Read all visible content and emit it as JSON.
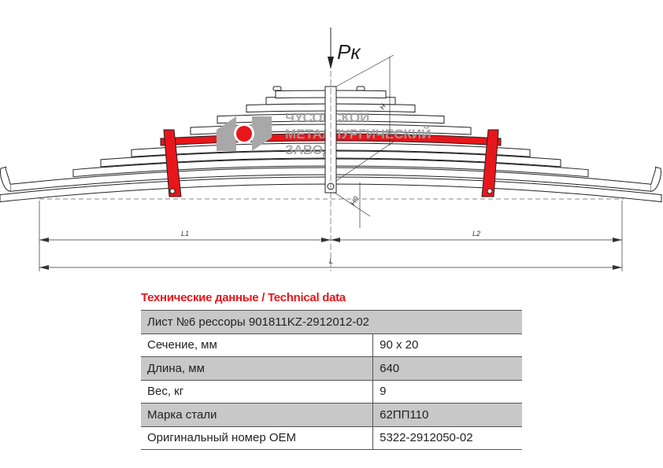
{
  "drawing": {
    "force_label": "Pк",
    "dim_labels": {
      "l1": "L1",
      "l2": "L2",
      "l": "L",
      "h": "H",
      "h0": "H0"
    },
    "highlight_color": "#e8161b",
    "watermark": {
      "line1": "ЧУСОВСКОЙ",
      "line2": "МЕТАЛЛУРГИЧЕСКИЙ",
      "line3": "ЗАВОД",
      "color": "#a0a0a0"
    }
  },
  "specs": {
    "title": "Технические данные / Technical data",
    "header": "Лист №6 рессоры 901811KZ-2912012-02",
    "rows": [
      {
        "label": "Сечение, мм",
        "value": "90 x 20"
      },
      {
        "label": "Длина, мм",
        "value": "640"
      },
      {
        "label": "Вес, кг",
        "value": "9"
      },
      {
        "label": "Марка стали",
        "value": "62ПП110"
      },
      {
        "label": "Оригинальный номер OEM",
        "value": "5322-2912050-02"
      }
    ]
  }
}
